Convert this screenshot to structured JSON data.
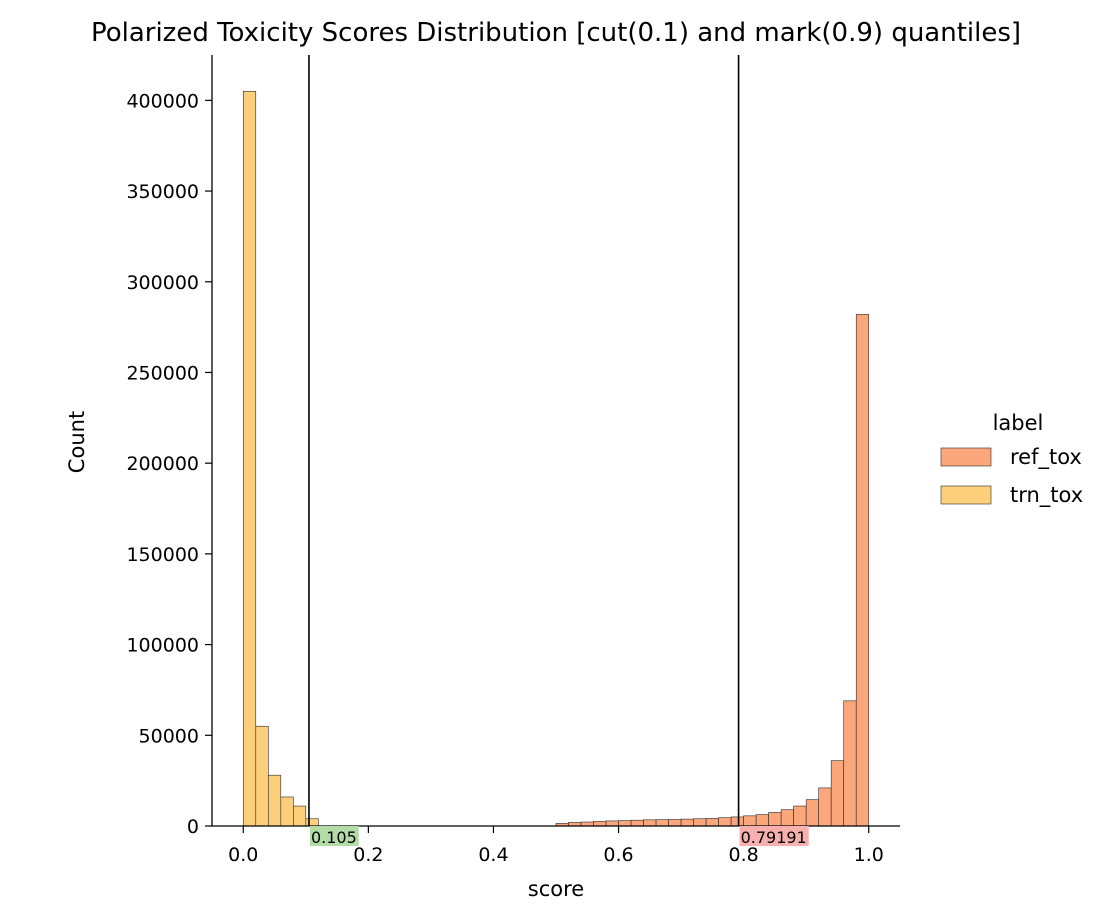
{
  "chart_data": {
    "type": "bar",
    "title": "Polarized Toxicity Scores Distribution [cut(0.1) and mark(0.9) quantiles]",
    "xlabel": "score",
    "ylabel": "Count",
    "xlim": [
      -0.05,
      1.05
    ],
    "ylim": [
      0,
      425000
    ],
    "xticks": [
      "0.0",
      "0.2",
      "0.4",
      "0.6",
      "0.8",
      "1.0"
    ],
    "yticks": [
      "0",
      "50000",
      "100000",
      "150000",
      "200000",
      "250000",
      "300000",
      "350000",
      "400000"
    ],
    "bin_width": 0.02,
    "grid": false,
    "legend": {
      "title": "label",
      "position": "right"
    },
    "series": [
      {
        "name": "ref_tox",
        "color": "#FCA67C",
        "bin_starts": [
          0.5,
          0.52,
          0.54,
          0.56,
          0.58,
          0.6,
          0.62,
          0.64,
          0.66,
          0.68,
          0.7,
          0.72,
          0.74,
          0.76,
          0.78,
          0.8,
          0.82,
          0.84,
          0.86,
          0.88,
          0.9,
          0.92,
          0.94,
          0.96,
          0.98
        ],
        "values": [
          1500,
          2000,
          2200,
          2600,
          2800,
          3000,
          3200,
          3400,
          3500,
          3600,
          3800,
          4000,
          4200,
          4600,
          5000,
          5600,
          6300,
          7500,
          9000,
          11000,
          14500,
          21000,
          36000,
          69000,
          282000
        ]
      },
      {
        "name": "trn_tox",
        "color": "#FDCF7A",
        "bin_starts": [
          0.0,
          0.02,
          0.04,
          0.06,
          0.08,
          0.1
        ],
        "values": [
          405000,
          55000,
          28000,
          16000,
          11000,
          4000
        ]
      }
    ],
    "annotations": [
      {
        "x": 0.105,
        "label": "0.105",
        "color": "#B2DBA8"
      },
      {
        "x": 0.79191,
        "label": "0.79191",
        "color": "#F7B0AE"
      }
    ]
  }
}
